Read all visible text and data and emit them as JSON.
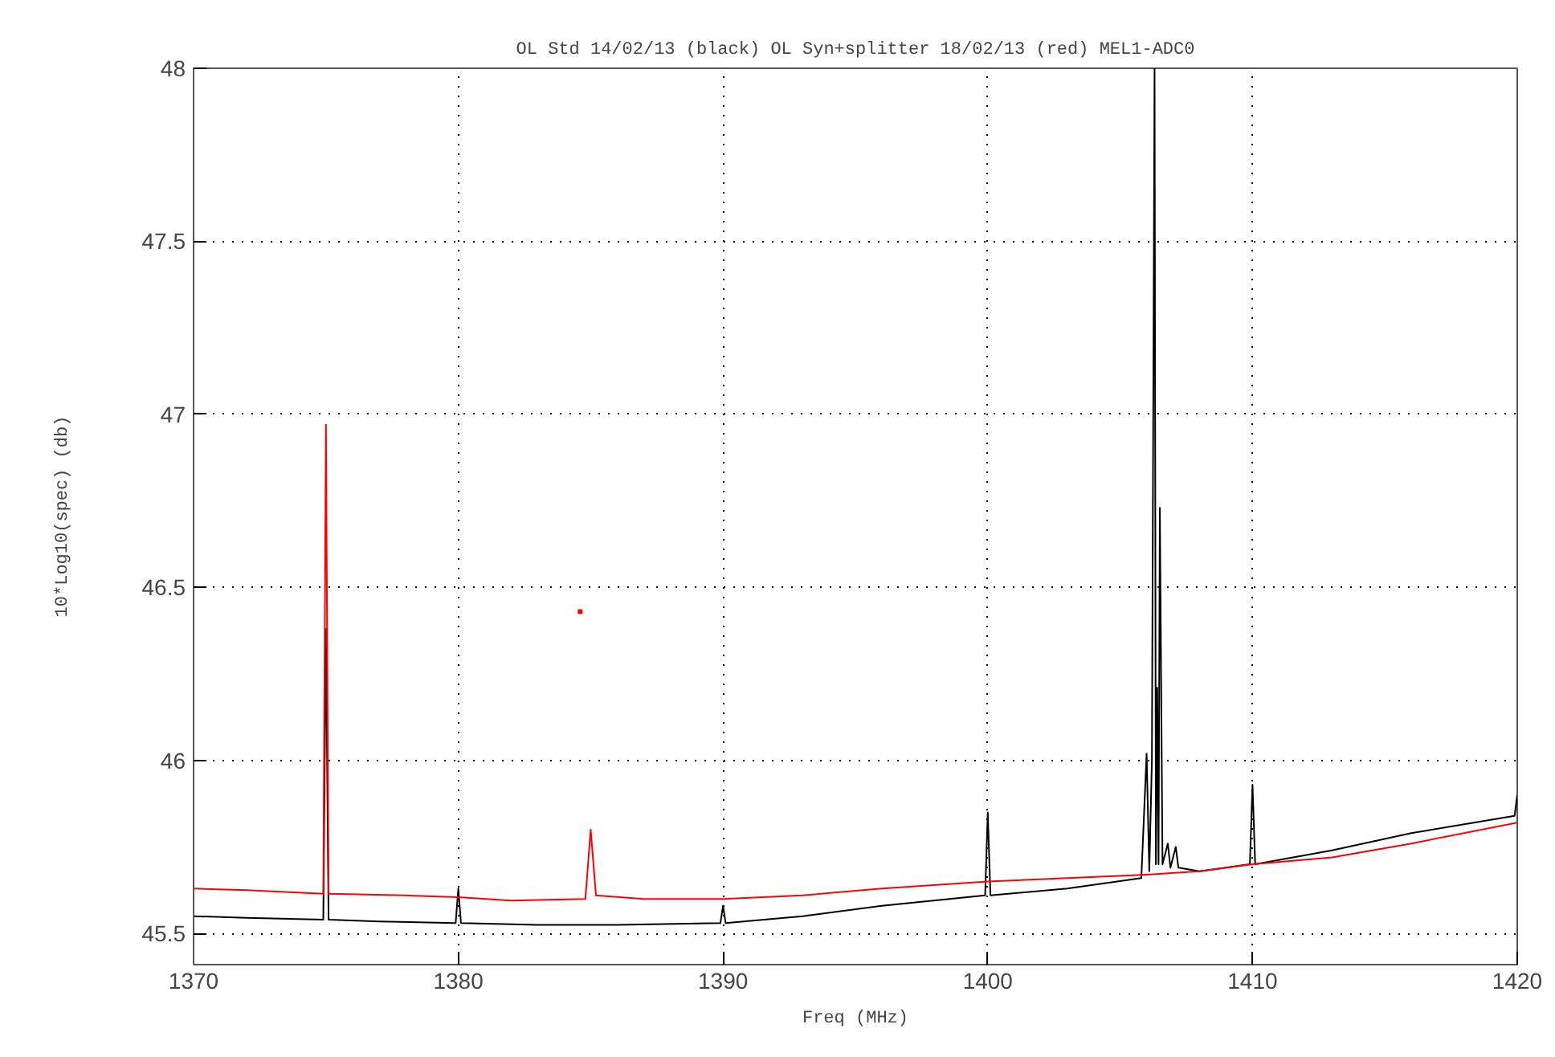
{
  "chart_data": {
    "type": "line",
    "title": "OL Std 14/02/13 (black) OL Syn+splitter 18/02/13 (red) MEL1-ADC0",
    "xlabel": "Freq (MHz)",
    "ylabel": "10*Log10(spec) (db)",
    "xlim": [
      1370,
      1420
    ],
    "xticks": [
      1370,
      1380,
      1390,
      1400,
      1410,
      1420
    ],
    "ylim": [
      45.41,
      48
    ],
    "yticks": [
      45.5,
      46,
      46.5,
      47,
      47.5,
      48
    ],
    "grid": true,
    "series": [
      {
        "color": "#000000",
        "x": [
          1370,
          1372,
          1374.9,
          1375,
          1375.1,
          1377,
          1379.9,
          1380,
          1380.1,
          1383,
          1386,
          1389.9,
          1390,
          1390.1,
          1393,
          1396,
          1399.9,
          1400,
          1400.1,
          1403,
          1405.8,
          1406,
          1406.1,
          1406.2,
          1406.3,
          1406.35,
          1406.4,
          1406.45,
          1406.5,
          1406.6,
          1406.8,
          1406.9,
          1407.1,
          1407.2,
          1408,
          1409.9,
          1410,
          1410.1,
          1413,
          1416,
          1419.9,
          1420
        ],
        "values": [
          45.55,
          45.545,
          45.54,
          46.38,
          45.54,
          45.535,
          45.53,
          45.63,
          45.53,
          45.525,
          45.525,
          45.53,
          45.58,
          45.53,
          45.55,
          45.58,
          45.61,
          45.85,
          45.61,
          45.63,
          45.66,
          46.02,
          45.68,
          46.0,
          48,
          45.7,
          46.21,
          45.7,
          46.73,
          45.7,
          45.76,
          45.69,
          45.75,
          45.69,
          45.68,
          45.7,
          45.93,
          45.7,
          45.74,
          45.79,
          45.84,
          45.9
        ]
      },
      {
        "color": "#ff0000",
        "x": [
          1370,
          1372,
          1374.9,
          1375,
          1375.1,
          1378,
          1380,
          1382,
          1384.8,
          1385,
          1385.2,
          1387,
          1390,
          1393,
          1396,
          1400,
          1403,
          1406,
          1408,
          1410,
          1413,
          1416,
          1420
        ],
        "values": [
          45.63,
          45.625,
          45.615,
          46.97,
          45.615,
          45.61,
          45.605,
          45.595,
          45.6,
          45.8,
          45.61,
          45.6,
          45.6,
          45.61,
          45.63,
          45.65,
          45.66,
          45.67,
          45.68,
          45.7,
          45.72,
          45.76,
          45.82
        ]
      },
      {
        "type": "scatter",
        "marker": "square",
        "color": "#ff0000",
        "x": [
          1384.6
        ],
        "values": [
          46.43
        ]
      }
    ]
  }
}
